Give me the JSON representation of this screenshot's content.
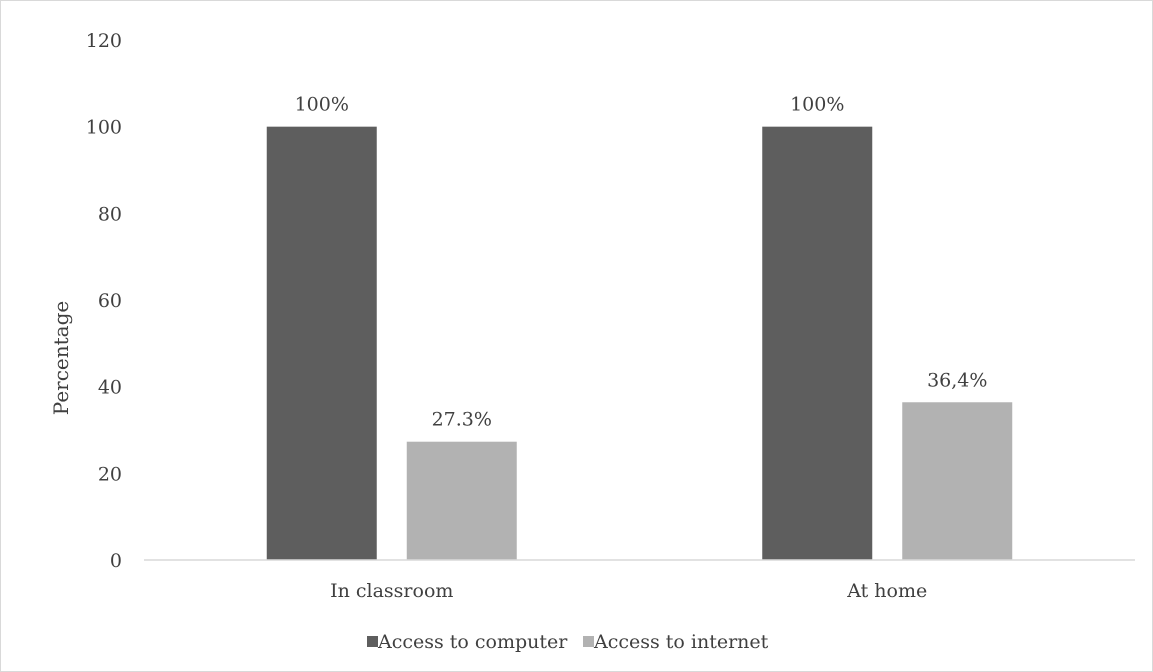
{
  "chart_data": {
    "type": "bar",
    "categories": [
      "In classroom",
      "At home"
    ],
    "series": [
      {
        "name": "Access to computer",
        "values": [
          100,
          100
        ],
        "labels": [
          "100%",
          "100%"
        ],
        "color": "#5e5e5e"
      },
      {
        "name": "Access to internet",
        "values": [
          27.3,
          36.4
        ],
        "labels": [
          "27.3%",
          "36,4%"
        ],
        "color": "#b2b2b2"
      }
    ],
    "ylabel": "Percentage",
    "xlabel": "",
    "ylim": [
      0,
      120
    ],
    "yticks": [
      0,
      20,
      40,
      60,
      80,
      100,
      120
    ],
    "grid": false,
    "legend": "bottom"
  }
}
